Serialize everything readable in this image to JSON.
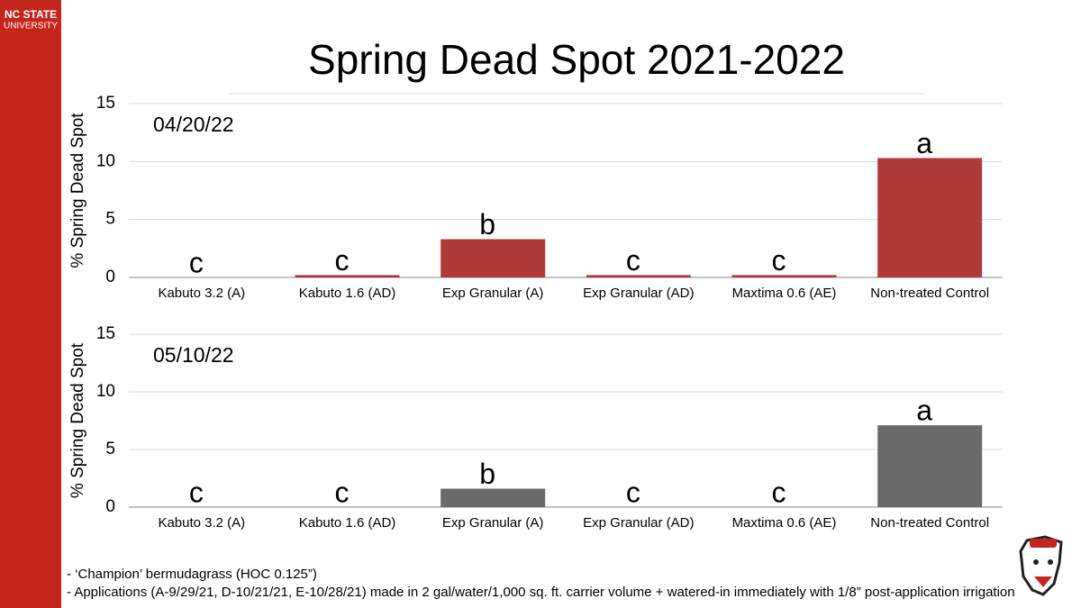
{
  "logo": {
    "line1": "NC STATE",
    "line2": "UNIVERSITY"
  },
  "title": "Spring Dead Spot 2021-2022",
  "chart_data": [
    {
      "type": "bar",
      "subtitle": "04/20/22",
      "y_label": "% Spring Dead Spot",
      "categories": [
        "Kabuto 3.2 (A)",
        "Kabuto 1.6 (AD)",
        "Exp Granular (A)",
        "Exp Granular (AD)",
        "Maxtima 0.6 (AE)",
        "Non-treated Control"
      ],
      "values": [
        0,
        0.2,
        3.3,
        0.2,
        0.2,
        10.3
      ],
      "letters": [
        "c",
        "c",
        "b",
        "c",
        "c",
        "a"
      ],
      "color": "#b0393a",
      "ylim": [
        0,
        15
      ],
      "yticks": [
        0,
        5,
        10,
        15
      ],
      "grid": true
    },
    {
      "type": "bar",
      "subtitle": "05/10/22",
      "y_label": "% Spring Dead Spot",
      "categories": [
        "Kabuto 3.2 (A)",
        "Kabuto 1.6 (AD)",
        "Exp Granular (A)",
        "Exp Granular (AD)",
        "Maxtima 0.6 (AE)",
        "Non-treated Control"
      ],
      "values": [
        0,
        0,
        1.6,
        0,
        0,
        7.1
      ],
      "letters": [
        "c",
        "c",
        "b",
        "c",
        "c",
        "a"
      ],
      "color": "#6a6a6a",
      "ylim": [
        0,
        15
      ],
      "yticks": [
        0,
        5,
        10,
        15
      ],
      "grid": true
    }
  ],
  "notes": [
    "- ‘Champion’ bermudagrass (HOC 0.125”)",
    "- Applications (A-9/29/21, D-10/21/21, E-10/28/21) made in 2 gal/water/1,000 sq. ft. carrier volume + watered-in immediately with 1/8” post-application irrigation"
  ]
}
